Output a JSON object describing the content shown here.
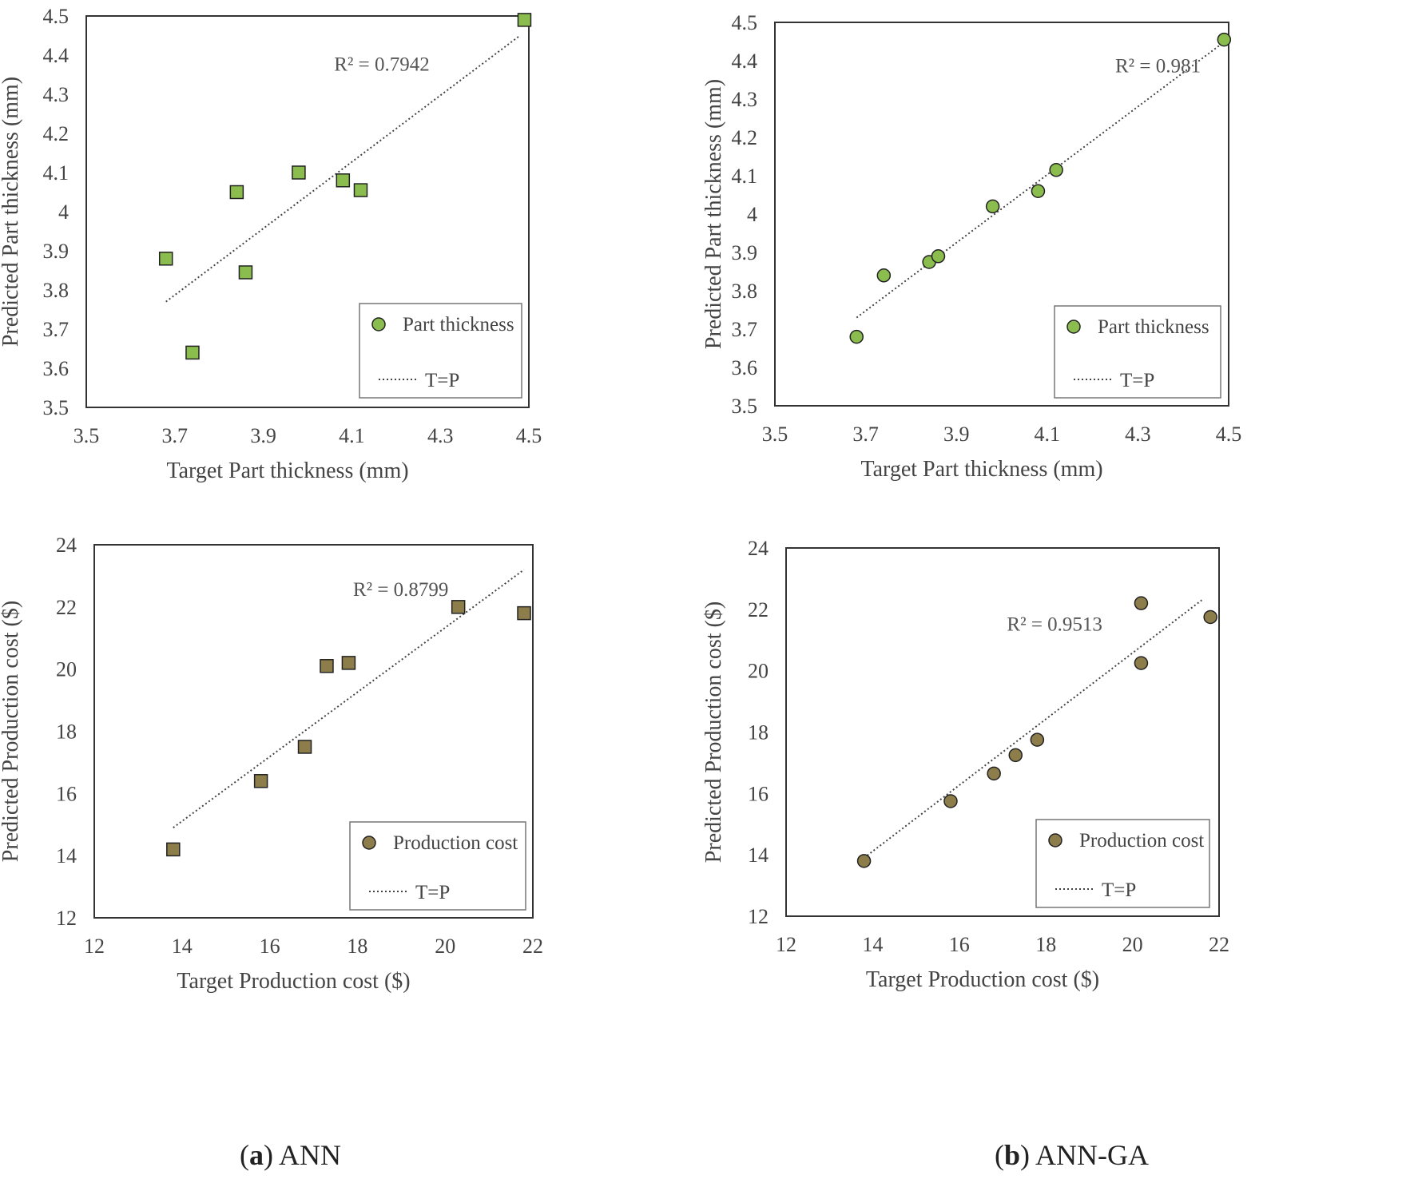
{
  "figure": {
    "caption_a": {
      "letter": "a",
      "text": " ANN"
    },
    "caption_b": {
      "letter": "b",
      "text": " ANN-GA"
    }
  },
  "colors": {
    "thickness_fill": "#8bbd4e",
    "cost_fill": "#8c7d4a",
    "axis": "#333333",
    "trend": "#444444"
  },
  "chart_data": [
    {
      "id": "ann-thickness",
      "type": "scatter",
      "title": "",
      "xlabel": "Target Part thickness (mm)",
      "ylabel": "Predicted Part thickness (mm)",
      "xlim": [
        3.5,
        4.5
      ],
      "ylim": [
        3.5,
        4.5
      ],
      "xticks": [
        3.5,
        3.7,
        3.9,
        4.1,
        4.3,
        4.5
      ],
      "xtick_labels": [
        "3.5",
        "3.7",
        "3.9",
        "4.1",
        "4.3",
        "4.5"
      ],
      "yticks": [
        3.5,
        3.6,
        3.7,
        3.8,
        3.9,
        4.0,
        4.1,
        4.2,
        4.3,
        4.4,
        4.5
      ],
      "ytick_labels": [
        "3.5",
        "3.6",
        "3.7",
        "3.8",
        "3.9",
        "4",
        "4.1",
        "4.2",
        "4.3",
        "4.4",
        "4.5"
      ],
      "marker": "square",
      "fill": "#8bbd4e",
      "series": [
        {
          "name": "Part thickness",
          "x": [
            3.68,
            3.74,
            3.84,
            3.86,
            3.98,
            4.08,
            4.12,
            4.49
          ],
          "y": [
            3.88,
            3.64,
            4.05,
            3.845,
            4.1,
            4.08,
            4.055,
            4.49
          ]
        }
      ],
      "trendline": {
        "name": "T=P",
        "x": [
          3.68,
          4.48
        ],
        "y": [
          3.77,
          4.45
        ]
      },
      "r2": "R² = 0.7942",
      "r2_at": [
        4.06,
        4.36
      ],
      "legend": {
        "position": "bottom-right",
        "series_label": "Part thickness",
        "line_label": "T=P"
      }
    },
    {
      "id": "annga-thickness",
      "type": "scatter",
      "title": "",
      "xlabel": "Target Part thickness (mm)",
      "ylabel": "Predicted Part thickness (mm)",
      "xlim": [
        3.5,
        4.5
      ],
      "ylim": [
        3.5,
        4.5
      ],
      "xticks": [
        3.5,
        3.7,
        3.9,
        4.1,
        4.3,
        4.5
      ],
      "xtick_labels": [
        "3.5",
        "3.7",
        "3.9",
        "4.1",
        "4.3",
        "4.5"
      ],
      "yticks": [
        3.5,
        3.6,
        3.7,
        3.8,
        3.9,
        4.0,
        4.1,
        4.2,
        4.3,
        4.4,
        4.5
      ],
      "ytick_labels": [
        "3.5",
        "3.6",
        "3.7",
        "3.8",
        "3.9",
        "4",
        "4.1",
        "4.2",
        "4.3",
        "4.4",
        "4.5"
      ],
      "marker": "circle",
      "fill": "#8bbd4e",
      "series": [
        {
          "name": "Part thickness",
          "x": [
            3.68,
            3.74,
            3.84,
            3.86,
            3.98,
            4.08,
            4.12,
            4.49
          ],
          "y": [
            3.68,
            3.84,
            3.875,
            3.89,
            4.02,
            4.06,
            4.115,
            4.455
          ]
        }
      ],
      "trendline": {
        "name": "T=P",
        "x": [
          3.68,
          4.48
        ],
        "y": [
          3.73,
          4.44
        ]
      },
      "r2": "R² = 0.981",
      "r2_at": [
        4.25,
        4.37
      ],
      "legend": {
        "position": "bottom-right",
        "series_label": "Part thickness",
        "line_label": "T=P"
      }
    },
    {
      "id": "ann-cost",
      "type": "scatter",
      "title": "",
      "xlabel": "Target Production cost ($)",
      "ylabel": "Predicted Production cost ($)",
      "xlim": [
        12,
        22
      ],
      "ylim": [
        12,
        24
      ],
      "xticks": [
        12,
        14,
        16,
        18,
        20,
        22
      ],
      "xtick_labels": [
        "12",
        "14",
        "16",
        "18",
        "20",
        "22"
      ],
      "yticks": [
        12,
        14,
        16,
        18,
        20,
        22,
        24
      ],
      "ytick_labels": [
        "12",
        "14",
        "16",
        "18",
        "20",
        "22",
        "24"
      ],
      "marker": "square",
      "fill": "#8c7d4a",
      "series": [
        {
          "name": "Production cost",
          "x": [
            13.8,
            15.8,
            16.8,
            17.3,
            17.8,
            20.3,
            21.8
          ],
          "y": [
            14.2,
            16.4,
            17.5,
            20.1,
            20.2,
            22.0,
            21.8
          ]
        }
      ],
      "trendline": {
        "name": "T=P",
        "x": [
          13.8,
          21.8
        ],
        "y": [
          14.9,
          23.2
        ]
      },
      "r2": "R² = 0.8799",
      "r2_at": [
        17.9,
        22.35
      ],
      "legend": {
        "position": "bottom-right",
        "series_label": "Production cost",
        "line_label": "T=P"
      }
    },
    {
      "id": "annga-cost",
      "type": "scatter",
      "title": "",
      "xlabel": "Target Production cost ($)",
      "ylabel": "Predicted Production cost ($)",
      "xlim": [
        12,
        22
      ],
      "ylim": [
        12,
        24
      ],
      "xticks": [
        12,
        14,
        16,
        18,
        20,
        22
      ],
      "xtick_labels": [
        "12",
        "14",
        "16",
        "18",
        "20",
        "22"
      ],
      "yticks": [
        12,
        14,
        16,
        18,
        20,
        22,
        24
      ],
      "ytick_labels": [
        "12",
        "14",
        "16",
        "18",
        "20",
        "22",
        "24"
      ],
      "marker": "circle",
      "fill": "#8c7d4a",
      "series": [
        {
          "name": "Production cost",
          "x": [
            13.8,
            15.8,
            16.8,
            17.3,
            17.8,
            20.2,
            20.2,
            21.8
          ],
          "y": [
            13.8,
            15.75,
            16.65,
            17.25,
            17.75,
            22.2,
            20.25,
            21.75
          ]
        }
      ],
      "trendline": {
        "name": "T=P",
        "x": [
          13.8,
          21.6
        ],
        "y": [
          13.9,
          22.3
        ]
      },
      "r2": "R² = 0.9513",
      "r2_at": [
        17.1,
        21.3
      ],
      "legend": {
        "position": "bottom-right",
        "series_label": "Production cost",
        "line_label": "T=P"
      }
    }
  ]
}
